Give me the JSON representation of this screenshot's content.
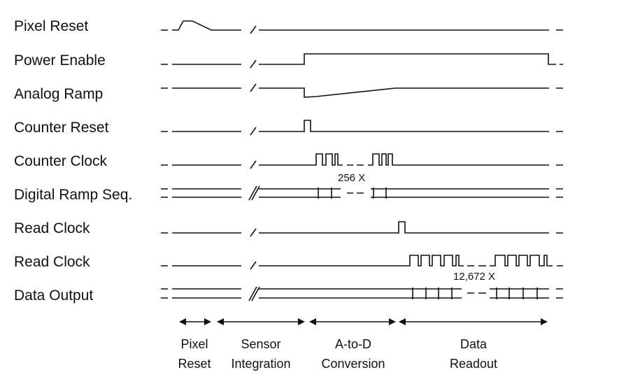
{
  "signals": [
    {
      "id": "pixel-reset",
      "label": "Pixel Reset"
    },
    {
      "id": "power-enable",
      "label": "Power Enable"
    },
    {
      "id": "analog-ramp",
      "label": "Analog Ramp"
    },
    {
      "id": "counter-reset",
      "label": "Counter Reset"
    },
    {
      "id": "counter-clock",
      "label": "Counter Clock"
    },
    {
      "id": "digital-ramp-seq",
      "label": "Digital Ramp Seq."
    },
    {
      "id": "read-clock-1",
      "label": "Read Clock"
    },
    {
      "id": "read-clock-2",
      "label": "Read Clock"
    },
    {
      "id": "data-output",
      "label": "Data Output"
    }
  ],
  "annotations": {
    "counter_repeat": "256 X",
    "read_repeat": "12,672 X"
  },
  "phases": [
    {
      "id": "pixel-reset",
      "line1": "Pixel",
      "line2": "Reset"
    },
    {
      "id": "sensor-integration",
      "line1": "Sensor",
      "line2": "Integration"
    },
    {
      "id": "a-to-d-conversion",
      "line1": "A-to-D",
      "line2": "Conversion"
    },
    {
      "id": "data-readout",
      "line1": "Data",
      "line2": "Readout"
    }
  ]
}
